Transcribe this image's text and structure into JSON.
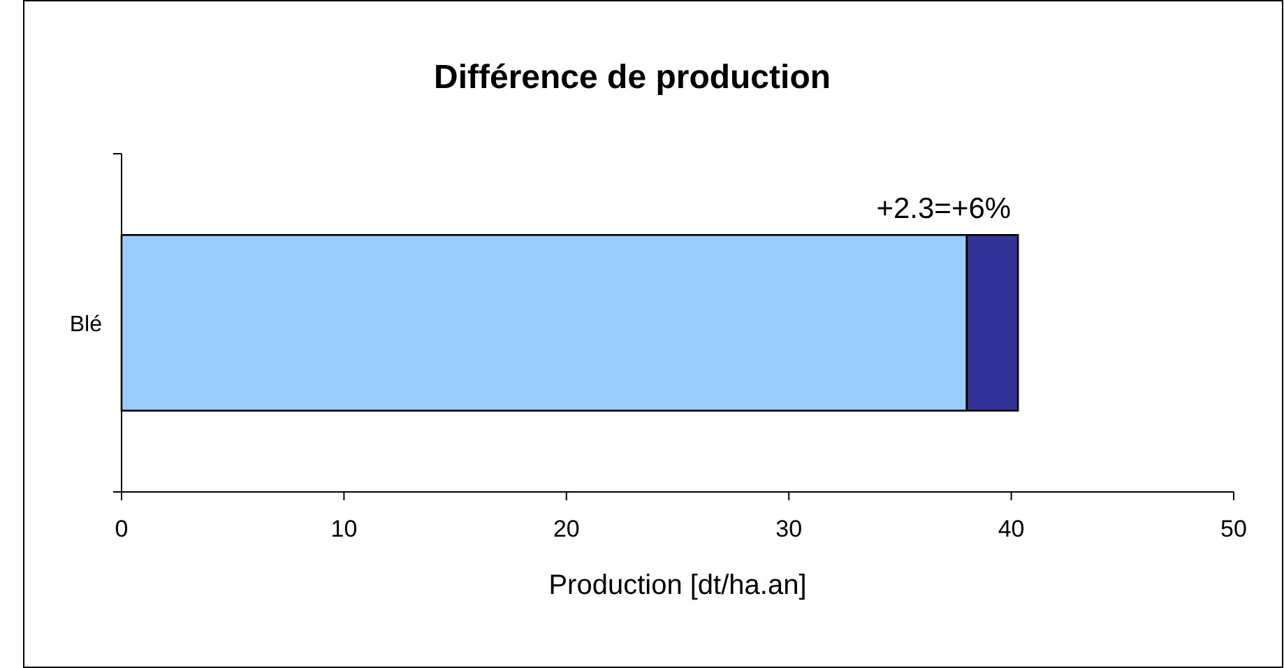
{
  "chart_data": {
    "type": "bar",
    "orientation": "horizontal",
    "stacked": true,
    "title": "Différence de production",
    "xlabel": "Production [dt/ha.an]",
    "categories": [
      "Blé"
    ],
    "series": [
      {
        "color": "#99ccff",
        "values": [
          38
        ]
      },
      {
        "color": "#333399",
        "values": [
          2.3
        ]
      }
    ],
    "xlim": [
      0,
      50
    ],
    "xticks": [
      0,
      10,
      20,
      30,
      40,
      50
    ],
    "grid": false,
    "annotations": [
      "+2.3=+6%"
    ]
  }
}
